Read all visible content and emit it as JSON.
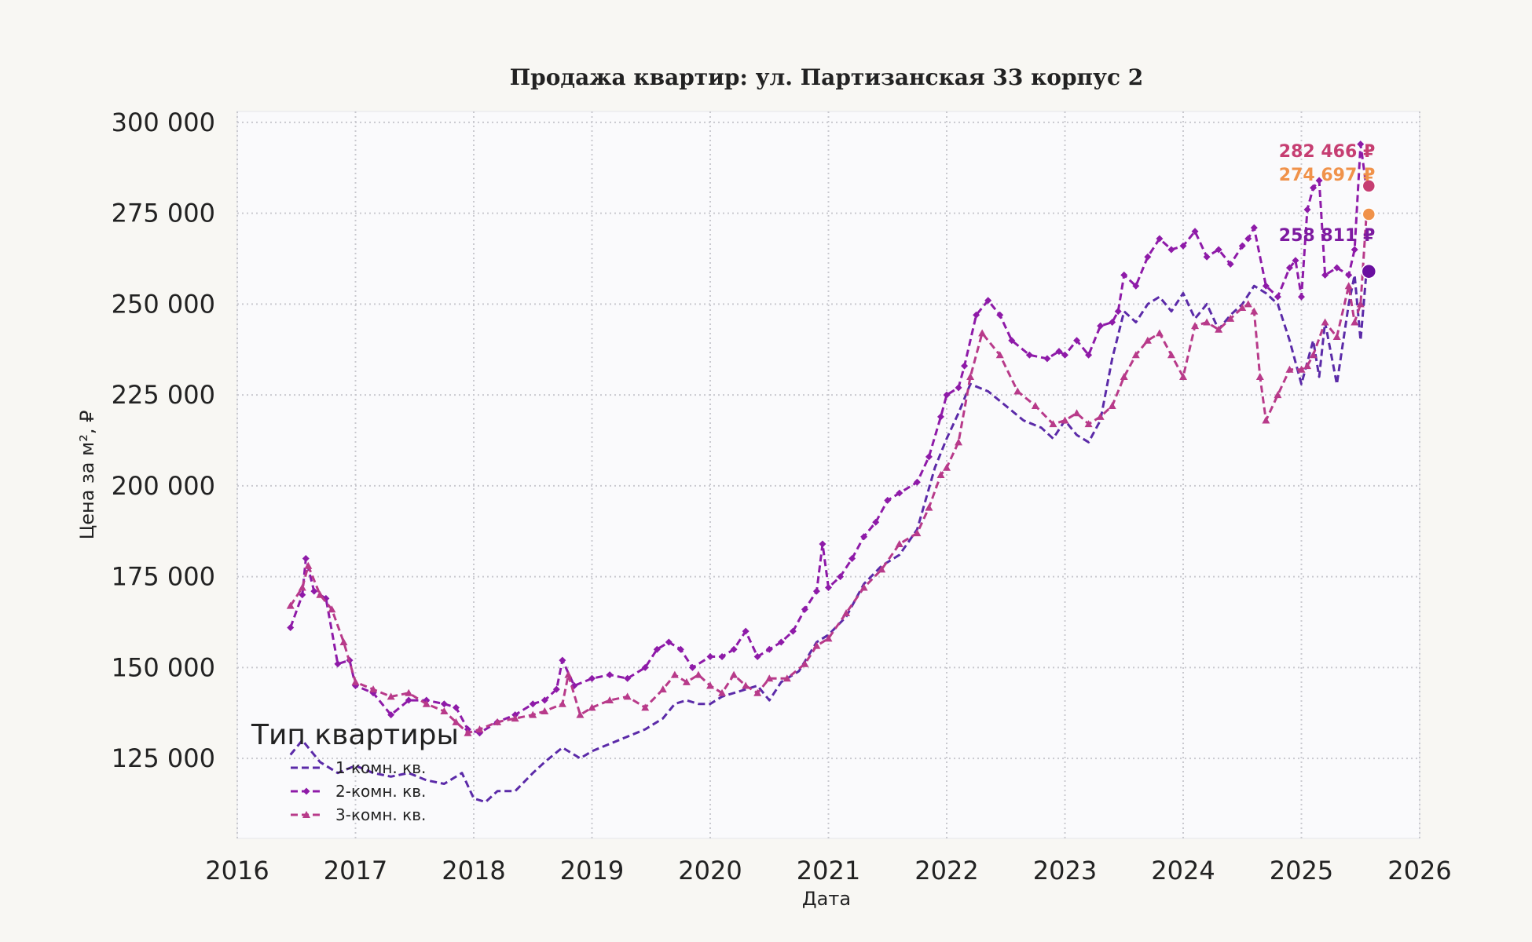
{
  "chart_data": {
    "type": "line",
    "title": "Продажа квартир: ул. Партизанская 33 корпус 2",
    "xlabel": "Дата",
    "ylabel": "Цена за м², ₽",
    "xlim": [
      2016,
      2026
    ],
    "ylim": [
      103000,
      303000
    ],
    "x_ticks": [
      "2016",
      "2017",
      "2018",
      "2019",
      "2020",
      "2021",
      "2022",
      "2023",
      "2024",
      "2025",
      "2026"
    ],
    "y_ticks": [
      "125 000",
      "150 000",
      "175 000",
      "200 000",
      "225 000",
      "250 000",
      "275 000",
      "300 000"
    ],
    "grid": true,
    "legend": {
      "title": "Тип квартиры",
      "placement": "lower-left"
    },
    "series": [
      {
        "name": "1-комн. кв.",
        "color": "#5b2aa8",
        "marker": "none",
        "end_label": "258 811 ₽",
        "end_point": [
          2025.57,
          259000
        ],
        "x": [
          2016.45,
          2016.55,
          2016.7,
          2016.85,
          2017.0,
          2017.15,
          2017.3,
          2017.45,
          2017.6,
          2017.75,
          2017.9,
          2018.0,
          2018.1,
          2018.2,
          2018.35,
          2018.5,
          2018.6,
          2018.75,
          2018.9,
          2019.0,
          2019.15,
          2019.3,
          2019.45,
          2019.6,
          2019.7,
          2019.8,
          2019.9,
          2020.0,
          2020.1,
          2020.2,
          2020.3,
          2020.4,
          2020.5,
          2020.6,
          2020.75,
          2020.9,
          2021.0,
          2021.15,
          2021.3,
          2021.45,
          2021.6,
          2021.75,
          2021.9,
          2022.0,
          2022.1,
          2022.2,
          2022.35,
          2022.5,
          2022.65,
          2022.8,
          2022.9,
          2023.0,
          2023.1,
          2023.2,
          2023.3,
          2023.4,
          2023.5,
          2023.6,
          2023.7,
          2023.8,
          2023.9,
          2024.0,
          2024.1,
          2024.2,
          2024.3,
          2024.4,
          2024.5,
          2024.6,
          2024.7,
          2024.8,
          2024.9,
          2025.0,
          2025.05,
          2025.1,
          2025.15,
          2025.2,
          2025.3,
          2025.4,
          2025.45,
          2025.5,
          2025.55
        ],
        "y": [
          126000,
          130000,
          124000,
          121000,
          123000,
          121000,
          120000,
          121000,
          119000,
          118000,
          121000,
          114000,
          113000,
          116000,
          116000,
          121000,
          124000,
          128000,
          125000,
          127000,
          129000,
          131000,
          133000,
          136000,
          140000,
          141000,
          140000,
          140000,
          142000,
          143000,
          144000,
          145000,
          141000,
          146000,
          149000,
          157000,
          159000,
          164000,
          173000,
          178000,
          181000,
          188000,
          205000,
          213000,
          220000,
          228000,
          226000,
          222000,
          218000,
          216000,
          213000,
          218000,
          214000,
          212000,
          218000,
          235000,
          248000,
          245000,
          250000,
          252000,
          248000,
          253000,
          246000,
          250000,
          243000,
          247000,
          250000,
          255000,
          253000,
          250000,
          240000,
          228000,
          234000,
          240000,
          230000,
          245000,
          228000,
          250000,
          258000,
          240000,
          259000
        ]
      },
      {
        "name": "2-комн. кв.",
        "color": "#8e1aa8",
        "marker": "diamond",
        "end_label": "282 466 ₽",
        "end_point": [
          2025.57,
          282500
        ],
        "x": [
          2016.45,
          2016.55,
          2016.58,
          2016.65,
          2016.75,
          2016.85,
          2016.95,
          2017.0,
          2017.15,
          2017.3,
          2017.45,
          2017.6,
          2017.75,
          2017.85,
          2017.95,
          2018.05,
          2018.2,
          2018.35,
          2018.5,
          2018.6,
          2018.7,
          2018.75,
          2018.85,
          2019.0,
          2019.15,
          2019.3,
          2019.45,
          2019.55,
          2019.65,
          2019.75,
          2019.85,
          2020.0,
          2020.1,
          2020.2,
          2020.3,
          2020.4,
          2020.5,
          2020.6,
          2020.7,
          2020.8,
          2020.9,
          2020.95,
          2021.0,
          2021.1,
          2021.2,
          2021.3,
          2021.4,
          2021.5,
          2021.6,
          2021.75,
          2021.85,
          2021.95,
          2022.0,
          2022.1,
          2022.15,
          2022.25,
          2022.35,
          2022.45,
          2022.55,
          2022.7,
          2022.85,
          2022.95,
          2023.0,
          2023.1,
          2023.2,
          2023.3,
          2023.4,
          2023.45,
          2023.5,
          2023.6,
          2023.7,
          2023.8,
          2023.9,
          2024.0,
          2024.1,
          2024.2,
          2024.3,
          2024.4,
          2024.5,
          2024.55,
          2024.6,
          2024.7,
          2024.8,
          2024.9,
          2024.95,
          2025.0,
          2025.05,
          2025.1,
          2025.15,
          2025.2,
          2025.3,
          2025.4,
          2025.45,
          2025.5,
          2025.55
        ],
        "y": [
          161000,
          170000,
          180000,
          171000,
          169000,
          151000,
          152000,
          145000,
          143000,
          137000,
          141000,
          141000,
          140000,
          139000,
          133000,
          132000,
          135000,
          137000,
          140000,
          141000,
          144000,
          152000,
          145000,
          147000,
          148000,
          147000,
          150000,
          155000,
          157000,
          155000,
          150000,
          153000,
          153000,
          155000,
          160000,
          153000,
          155000,
          157000,
          160000,
          166000,
          171000,
          184000,
          172000,
          175000,
          180000,
          186000,
          190000,
          196000,
          198000,
          201000,
          208000,
          219000,
          225000,
          227000,
          233000,
          247000,
          251000,
          247000,
          240000,
          236000,
          235000,
          237000,
          236000,
          240000,
          236000,
          244000,
          245000,
          248000,
          258000,
          255000,
          263000,
          268000,
          265000,
          266000,
          270000,
          263000,
          265000,
          261000,
          266000,
          268000,
          271000,
          255000,
          252000,
          260000,
          262000,
          252000,
          276000,
          282000,
          284000,
          258000,
          260000,
          258000,
          265000,
          294000,
          282000
        ]
      },
      {
        "name": "3-комн. кв.",
        "color": "#b83a8a",
        "marker": "triangle",
        "end_label": "274 697 ₽",
        "end_point": [
          2025.57,
          274700
        ],
        "x": [
          2016.45,
          2016.55,
          2016.6,
          2016.7,
          2016.8,
          2016.9,
          2017.0,
          2017.15,
          2017.3,
          2017.45,
          2017.6,
          2017.75,
          2017.85,
          2017.95,
          2018.05,
          2018.2,
          2018.35,
          2018.5,
          2018.6,
          2018.75,
          2018.8,
          2018.9,
          2019.0,
          2019.15,
          2019.3,
          2019.45,
          2019.6,
          2019.7,
          2019.8,
          2019.9,
          2020.0,
          2020.1,
          2020.2,
          2020.3,
          2020.4,
          2020.5,
          2020.65,
          2020.8,
          2020.9,
          2021.0,
          2021.15,
          2021.3,
          2021.45,
          2021.6,
          2021.75,
          2021.85,
          2021.95,
          2022.0,
          2022.1,
          2022.2,
          2022.3,
          2022.45,
          2022.6,
          2022.75,
          2022.9,
          2023.0,
          2023.1,
          2023.2,
          2023.3,
          2023.4,
          2023.5,
          2023.6,
          2023.7,
          2023.8,
          2023.9,
          2024.0,
          2024.1,
          2024.2,
          2024.3,
          2024.4,
          2024.5,
          2024.55,
          2024.6,
          2024.65,
          2024.7,
          2024.8,
          2024.9,
          2025.0,
          2025.05,
          2025.1,
          2025.2,
          2025.3,
          2025.4,
          2025.45,
          2025.5,
          2025.55
        ],
        "y": [
          167000,
          172000,
          178000,
          170000,
          166000,
          157000,
          146000,
          144000,
          142000,
          143000,
          140000,
          138000,
          135000,
          132000,
          133000,
          135000,
          136000,
          137000,
          138000,
          140000,
          148000,
          137000,
          139000,
          141000,
          142000,
          139000,
          144000,
          148000,
          146000,
          148000,
          145000,
          143000,
          148000,
          145000,
          143000,
          147000,
          147000,
          151000,
          156000,
          158000,
          165000,
          172000,
          177000,
          184000,
          187000,
          194000,
          203000,
          205000,
          212000,
          230000,
          242000,
          236000,
          226000,
          222000,
          217000,
          218000,
          220000,
          217000,
          219000,
          222000,
          230000,
          236000,
          240000,
          242000,
          236000,
          230000,
          244000,
          245000,
          243000,
          246000,
          249000,
          250000,
          248000,
          230000,
          218000,
          225000,
          232000,
          232000,
          233000,
          236000,
          245000,
          241000,
          255000,
          245000,
          250000,
          274700
        ]
      }
    ]
  }
}
